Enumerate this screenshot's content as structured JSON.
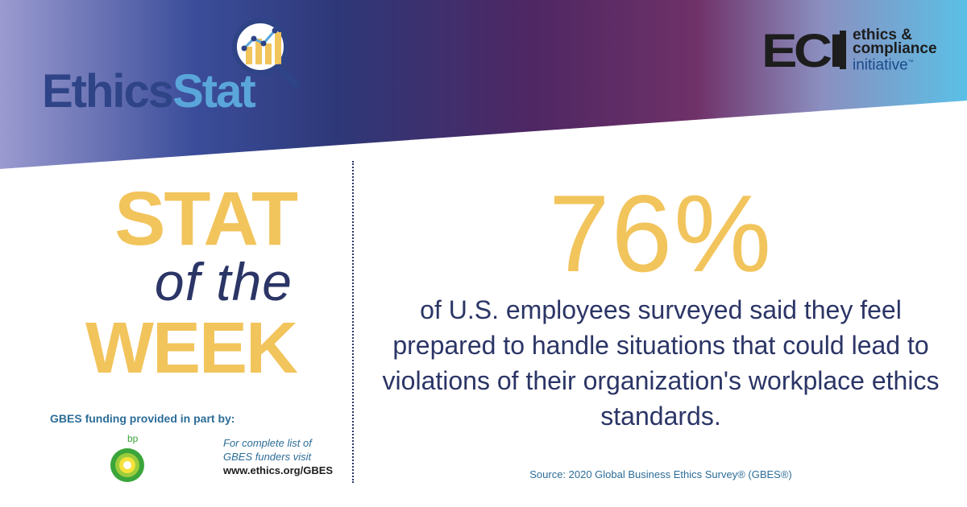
{
  "brand": {
    "name_part1": "Ethics",
    "name_part2": "Stat"
  },
  "partner": {
    "letters": "ECI",
    "line1": "ethics &",
    "line2": "compliance",
    "line3": "initiative",
    "tm": "™"
  },
  "headline": {
    "stat": "STAT",
    "of_the": "of the",
    "week": "WEEK"
  },
  "statistic": {
    "value": "76%",
    "description": "of U.S. employees surveyed said they feel prepared to handle situations that could lead to violations of their organization's workplace ethics standards."
  },
  "funding": {
    "label": "GBES funding provided in part by:",
    "sponsor": "bp",
    "note_line1": "For complete list of",
    "note_line2": "GBES funders visit",
    "url": "www.ethics.org/GBES"
  },
  "source": "Source: 2020 Global Business Ethics Survey® (GBES®)",
  "colors": {
    "accent_yellow": "#f2c45c",
    "navy": "#2b3566",
    "blue": "#5aa6da",
    "purple": "#5b2c6f"
  }
}
